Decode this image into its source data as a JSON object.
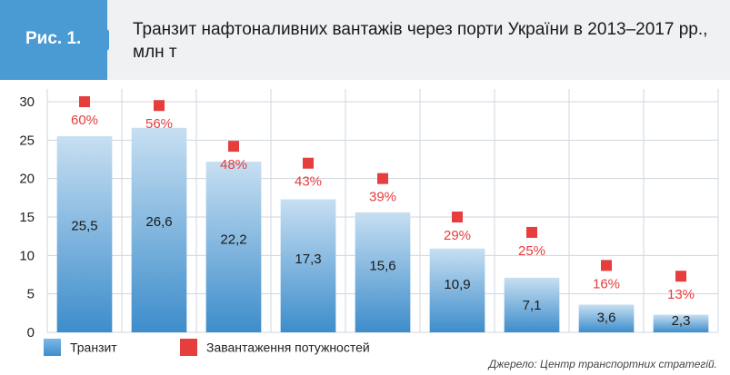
{
  "figure_label": "Рис. 1.",
  "title": "Транзит нафтоналивних вантажів через порти України в 2013–2017 рр., млн т",
  "source": "Джерело: Центр транспортних стратегій.",
  "legend": {
    "transit_label": "Транзит",
    "load_label": "Завантаження потужностей"
  },
  "colors": {
    "bar_top": "#c7dff2",
    "bar_bottom": "#3d8dcb",
    "marker": "#e63d3d",
    "pct_text": "#e63d3d",
    "grid": "#cfd6de",
    "badge": "#4a9ad4"
  },
  "chart_data": {
    "type": "bar",
    "title": "Транзит нафтоналивних вантажів через порти України в 2013–2017 рр., млн т",
    "ylim": [
      0,
      30
    ],
    "yticks": [
      "0",
      "5",
      "10",
      "15",
      "20",
      "25",
      "30"
    ],
    "series": [
      {
        "name": "Транзит",
        "values": [
          25.5,
          26.6,
          22.2,
          17.3,
          15.6,
          10.9,
          7.1,
          3.6,
          2.3
        ],
        "labels": [
          "25,5",
          "26,6",
          "22,2",
          "17,3",
          "15,6",
          "10,9",
          "7,1",
          "3,6",
          "2,3"
        ]
      },
      {
        "name": "Завантаження потужностей",
        "marker_y": [
          30,
          29.5,
          24.2,
          22.0,
          20.0,
          15.0,
          13.0,
          8.7,
          7.3
        ],
        "labels": [
          "60%",
          "56%",
          "48%",
          "43%",
          "39%",
          "29%",
          "25%",
          "16%",
          "13%"
        ]
      }
    ]
  }
}
